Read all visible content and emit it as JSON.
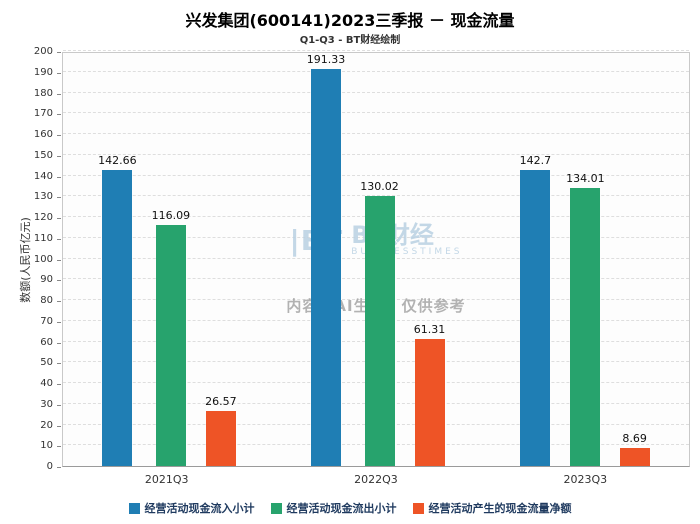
{
  "title": "兴发集团(600141)2023三季报 － 现金流量",
  "subtitle": "Q1-Q3 - BT财经绘制",
  "watermark": {
    "brand_icon": "|BT",
    "brand_name": "BT财经",
    "brand_sub": "BUSINESSTIMES",
    "disclaimer": "内容由AI生成，仅供参考"
  },
  "chart_data": {
    "type": "bar",
    "title": "兴发集团(600141)2023三季报 － 现金流量",
    "subtitle": "Q1-Q3 - BT财经绘制",
    "categories": [
      "2021Q3",
      "2022Q3",
      "2023Q3"
    ],
    "series": [
      {
        "name": "经营活动现金流入小计",
        "color": "#1f7eb4",
        "values": [
          142.66,
          191.33,
          142.7
        ]
      },
      {
        "name": "经营活动现金流出小计",
        "color": "#27a36d",
        "values": [
          116.09,
          130.02,
          134.01
        ]
      },
      {
        "name": "经营活动产生的现金流量净额",
        "color": "#ee5426",
        "values": [
          26.57,
          61.31,
          8.69
        ]
      }
    ],
    "xlabel": "",
    "ylabel": "数额(人民币亿元)",
    "ylim": [
      0,
      200
    ],
    "ytick_step": 10,
    "grid": true,
    "legend_position": "bottom"
  }
}
